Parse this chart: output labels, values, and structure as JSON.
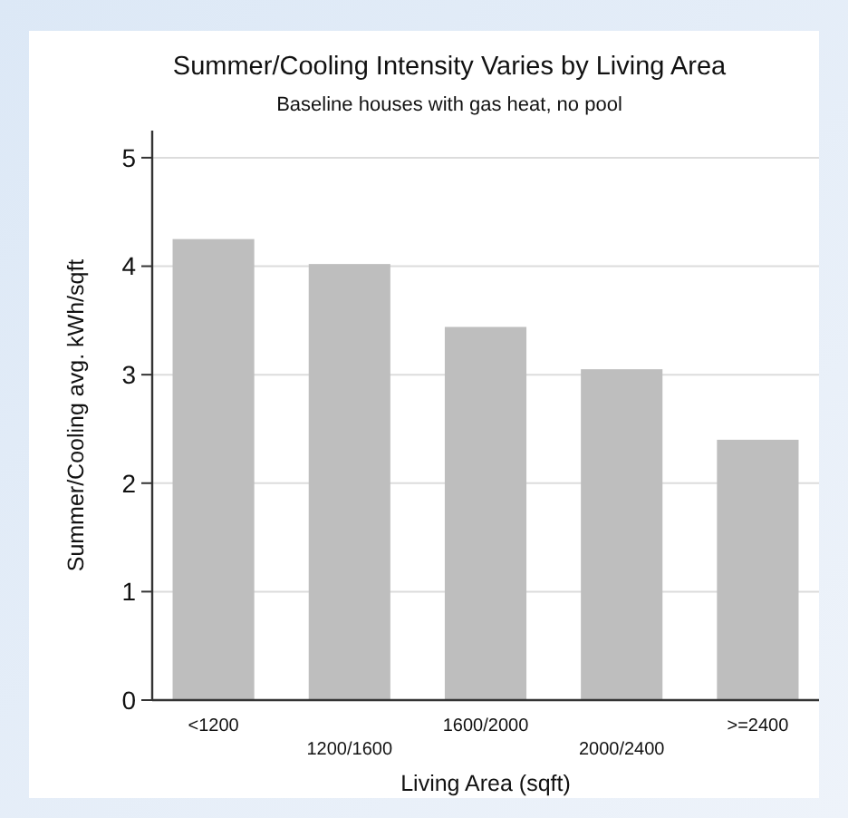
{
  "chart_data": {
    "type": "bar",
    "title": "Summer/Cooling Intensity Varies by Living Area",
    "subtitle": "Baseline houses with gas heat, no pool",
    "xlabel": "Living Area (sqft)",
    "ylabel": "Summer/Cooling avg. kWh/sqft",
    "categories": [
      "<1200",
      "1200/1600",
      "1600/2000",
      "2000/2400",
      ">=2400"
    ],
    "values": [
      4.25,
      4.02,
      3.44,
      3.05,
      2.4
    ],
    "color": "#bebebe",
    "ylim": [
      0,
      5.25
    ],
    "yticks": [
      0,
      1,
      2,
      3,
      4,
      5
    ],
    "grid": "y"
  }
}
